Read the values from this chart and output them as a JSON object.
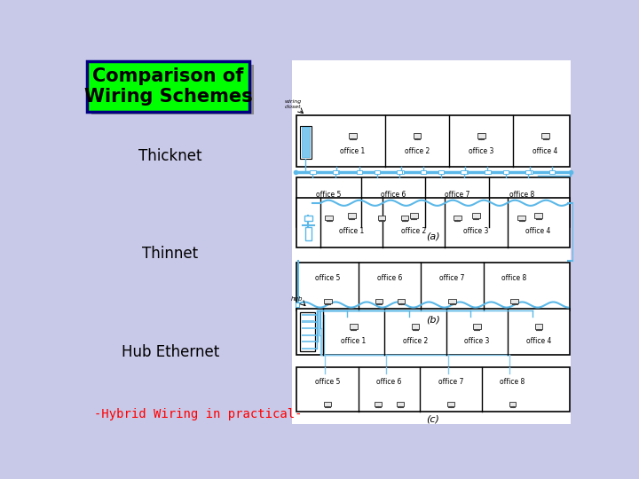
{
  "bg_color": "#c8c8e8",
  "title_text": "Comparison of\nWiring Schemes",
  "title_bg": "#00ff00",
  "title_fg": "#000000",
  "label_thicknet": "Thicknet",
  "label_thinnet": "Thinnet",
  "label_hub": "Hub Ethernet",
  "label_hybrid": "-Hybrid Wiring in practical-",
  "hybrid_color": "#ff0000",
  "wire_color": "#5bb8e8",
  "wire_color2": "#80c8ee",
  "office_border": "#000000",
  "label_a": "(a)",
  "label_b": "(b)",
  "label_c": "(c)",
  "wiring_closet_label": "wiring\ncloset",
  "hub_label": "hub",
  "office_labels_r1": [
    "office 1",
    "office 2",
    "office 3",
    "office 4"
  ],
  "office_labels_r2": [
    "office 5",
    "office 6",
    "office 7",
    "office 8"
  ]
}
